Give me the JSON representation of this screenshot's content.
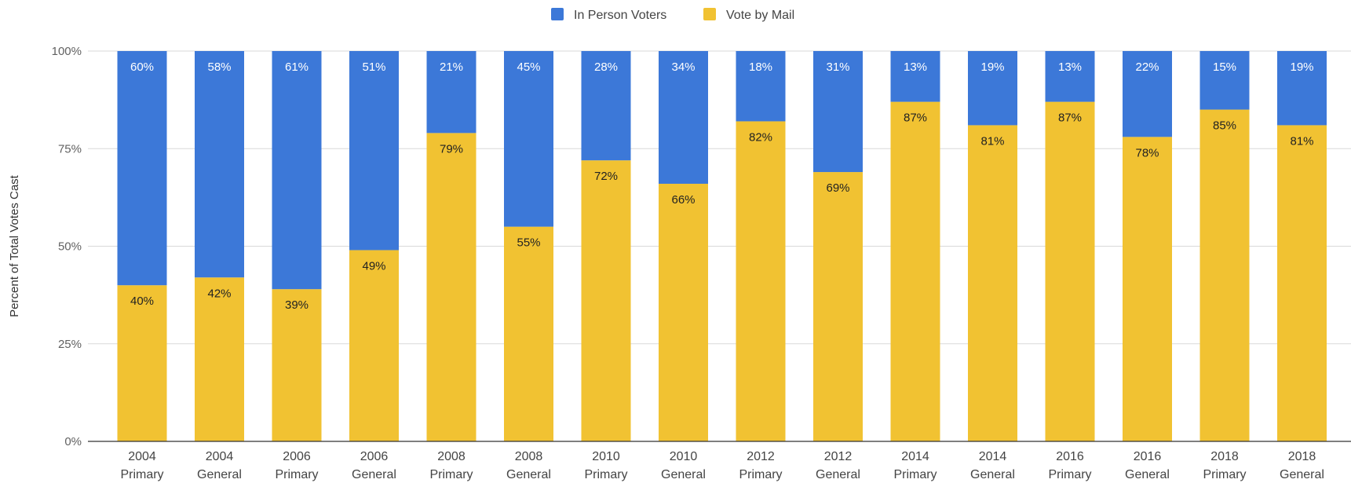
{
  "chart_data": {
    "type": "bar",
    "stacked": true,
    "percent_stacked": true,
    "categories": [
      "2004 Primary",
      "2004 General",
      "2006 Primary",
      "2006 General",
      "2008 Primary",
      "2008 General",
      "2010 Primary",
      "2010 General",
      "2012 Primary",
      "2012 General",
      "2014 Primary",
      "2014 General",
      "2016 Primary",
      "2016 General",
      "2018 Primary",
      "2018 General"
    ],
    "category_lines": [
      [
        "2004",
        "Primary"
      ],
      [
        "2004",
        "General"
      ],
      [
        "2006",
        "Primary"
      ],
      [
        "2006",
        "General"
      ],
      [
        "2008",
        "Primary"
      ],
      [
        "2008",
        "General"
      ],
      [
        "2010",
        "Primary"
      ],
      [
        "2010",
        "General"
      ],
      [
        "2012",
        "Primary"
      ],
      [
        "2012",
        "General"
      ],
      [
        "2014",
        "Primary"
      ],
      [
        "2014",
        "General"
      ],
      [
        "2016",
        "Primary"
      ],
      [
        "2016",
        "General"
      ],
      [
        "2018",
        "Primary"
      ],
      [
        "2018",
        "General"
      ]
    ],
    "series": [
      {
        "name": "Vote by Mail",
        "color": "#f1c232",
        "values": [
          40,
          42,
          39,
          49,
          79,
          55,
          72,
          66,
          82,
          69,
          87,
          81,
          87,
          78,
          85,
          81
        ]
      },
      {
        "name": "In Person Voters",
        "color": "#3c78d8",
        "values": [
          60,
          58,
          61,
          51,
          21,
          45,
          28,
          34,
          18,
          31,
          13,
          19,
          13,
          22,
          15,
          19
        ]
      }
    ],
    "legend_order": [
      "In Person Voters",
      "Vote by Mail"
    ],
    "legend_position": "top",
    "ylabel": "Percent of Total Votes Cast",
    "xlabel": "",
    "ylim": [
      0,
      100
    ],
    "yticks": [
      0,
      25,
      50,
      75,
      100
    ],
    "ytick_labels": [
      "0%",
      "25%",
      "50%",
      "75%",
      "100%"
    ],
    "data_label_suffix": "%",
    "grid": true
  }
}
